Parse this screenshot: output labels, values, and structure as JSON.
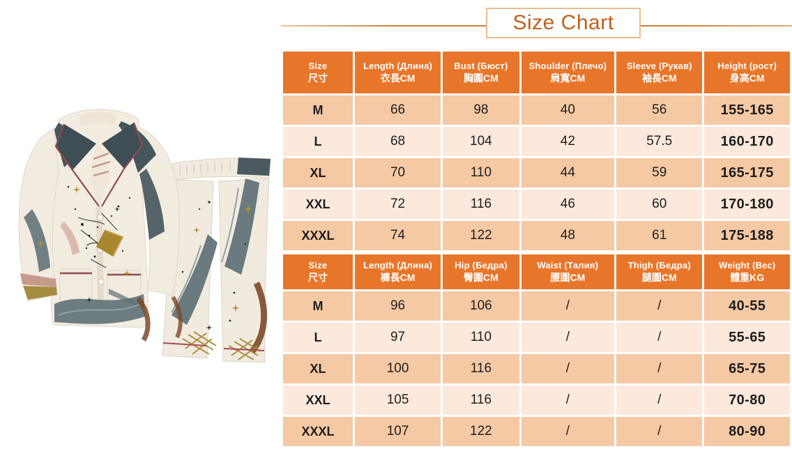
{
  "title": "Size Chart",
  "colors": {
    "header_bg": "#E8762A",
    "row_dark": "#F5C9A4",
    "row_light": "#FCE9DC",
    "title_text": "#C2601C",
    "title_border": "#ECBB90",
    "divider_line": "#C97F3C",
    "header_text": "#FFFFFF",
    "cell_text": "#1E1E1E"
  },
  "size_chart": {
    "tables": [
      {
        "id": "top",
        "headers": [
          {
            "line1": "Size",
            "line2": "尺寸"
          },
          {
            "line1": "Length (Длина)",
            "line2": "衣長CM"
          },
          {
            "line1": "Bust (Бюст)",
            "line2": "胸圍CM"
          },
          {
            "line1": "Shoulder (Плечо)",
            "line2": "肩寬CM"
          },
          {
            "line1": "Sleeve (Рукав)",
            "line2": "袖長CM"
          },
          {
            "line1": "Height (рост)",
            "line2": "身高CM"
          }
        ],
        "rows": [
          [
            "M",
            "66",
            "98",
            "40",
            "56",
            "155-165"
          ],
          [
            "L",
            "68",
            "104",
            "42",
            "57.5",
            "160-170"
          ],
          [
            "XL",
            "70",
            "110",
            "44",
            "59",
            "165-175"
          ],
          [
            "XXL",
            "72",
            "116",
            "46",
            "60",
            "170-180"
          ],
          [
            "XXXL",
            "74",
            "122",
            "48",
            "61",
            "175-188"
          ]
        ]
      },
      {
        "id": "bottom",
        "headers": [
          {
            "line1": "Size",
            "line2": "尺寸"
          },
          {
            "line1": "Length (Длина)",
            "line2": "褲長CM"
          },
          {
            "line1": "Hip (Бедра)",
            "line2": "臀圍CM"
          },
          {
            "line1": "Waist (Талия)",
            "line2": "腰圍CM"
          },
          {
            "line1": "Thigh (Бедра)",
            "line2": "腿圍CM"
          },
          {
            "line1": "Weight (Вес)",
            "line2": "體重KG"
          }
        ],
        "rows": [
          [
            "M",
            "96",
            "106",
            "/",
            "/",
            "40-55"
          ],
          [
            "L",
            "97",
            "110",
            "/",
            "/",
            "55-65"
          ],
          [
            "XL",
            "100",
            "116",
            "/",
            "/",
            "65-75"
          ],
          [
            "XXL",
            "105",
            "116",
            "/",
            "/",
            "70-80"
          ],
          [
            "XXXL",
            "107",
            "122",
            "/",
            "/",
            "80-90"
          ]
        ]
      }
    ]
  }
}
